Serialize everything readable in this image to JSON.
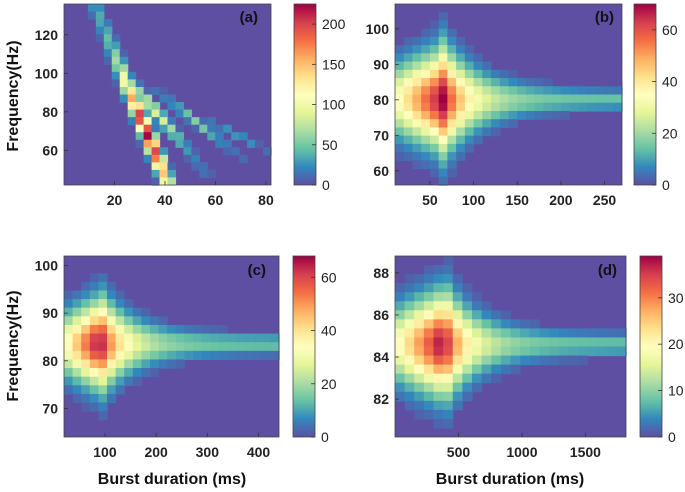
{
  "chart_data": [
    {
      "type": "heatmap",
      "panel_label": "(a)",
      "xlabel": "",
      "ylabel": "Frequency(Hz)",
      "xlim": [
        0,
        82
      ],
      "ylim": [
        42,
        136
      ],
      "xticks": [
        "20",
        "40",
        "60",
        "80"
      ],
      "xtick_values": [
        20,
        40,
        60,
        80
      ],
      "yticks": [
        "60",
        "80",
        "100",
        "120"
      ],
      "ytick_values": [
        60,
        80,
        100,
        120
      ],
      "colorbar": {
        "max": 225,
        "ticks": [
          "0",
          "50",
          "100",
          "150",
          "200"
        ],
        "tick_values": [
          0,
          50,
          100,
          150,
          200
        ]
      },
      "nx": 26,
      "ny": 24,
      "pattern": "diagonal_ridges",
      "ridges": [
        {
          "x_start": 12,
          "x_end": 40,
          "y_start": 136,
          "y_end": 46,
          "peak": 225,
          "peak_x": 29,
          "peak_y": 69
        },
        {
          "x_start": 24,
          "x_end": 55,
          "y_start": 100,
          "y_end": 50,
          "peak": 90,
          "peak_x": 35,
          "peak_y": 80
        },
        {
          "x_start": 38,
          "x_end": 72,
          "y_start": 90,
          "y_end": 54,
          "peak": 55,
          "peak_x": 50,
          "peak_y": 75
        },
        {
          "x_start": 52,
          "x_end": 82,
          "y_start": 80,
          "y_end": 58,
          "peak": 35,
          "peak_x": 65,
          "peak_y": 68
        }
      ]
    },
    {
      "type": "heatmap",
      "panel_label": "(b)",
      "xlabel": "",
      "ylabel": "",
      "xlim": [
        10,
        270
      ],
      "ylim": [
        56,
        107
      ],
      "xticks": [
        "50",
        "100",
        "150",
        "200",
        "250"
      ],
      "xtick_values": [
        50,
        100,
        150,
        200,
        250
      ],
      "yticks": [
        "60",
        "70",
        "80",
        "90",
        "100"
      ],
      "ytick_values": [
        60,
        70,
        80,
        90,
        100
      ],
      "colorbar": {
        "max": 70,
        "ticks": [
          "0",
          "20",
          "40",
          "60"
        ],
        "tick_values": [
          0,
          20,
          40,
          60
        ]
      },
      "nx": 26,
      "ny": 22,
      "pattern": "horizontal_funnel",
      "peak": {
        "x": 65,
        "y": 80,
        "value": 70
      },
      "decay_x": 35,
      "spread_y0": 18,
      "spread_y_tail": 3,
      "tail_level": 0.2
    },
    {
      "type": "heatmap",
      "panel_label": "(c)",
      "xlabel": "Burst duration (ms)",
      "ylabel": "Frequency(Hz)",
      "xlim": [
        20,
        440
      ],
      "ylim": [
        64,
        102
      ],
      "xticks": [
        "100",
        "200",
        "300",
        "400"
      ],
      "xtick_values": [
        100,
        200,
        300,
        400
      ],
      "yticks": [
        "70",
        "80",
        "90",
        "100"
      ],
      "yticks_values": [
        70,
        80,
        90,
        100
      ],
      "ytick_values": [
        70,
        80,
        90,
        100
      ],
      "colorbar": {
        "max": 68,
        "ticks": [
          "0",
          "20",
          "40",
          "60"
        ],
        "tick_values": [
          0,
          20,
          40,
          60
        ]
      },
      "nx": 25,
      "ny": 21,
      "pattern": "horizontal_funnel",
      "peak": {
        "x": 90,
        "y": 83.5,
        "value": 68
      },
      "decay_x": 55,
      "spread_y0": 12,
      "spread_y_tail": 2.5,
      "tail_level": 0.2
    },
    {
      "type": "heatmap",
      "panel_label": "(d)",
      "xlabel": "Burst duration (ms)",
      "ylabel": "",
      "xlim": [
        0,
        1820
      ],
      "ylim": [
        80.2,
        88.8
      ],
      "xticks": [
        "500",
        "1000",
        "1500"
      ],
      "xtick_values": [
        500,
        1000,
        1500
      ],
      "yticks": [
        "82",
        "84",
        "86",
        "88"
      ],
      "ytick_values": [
        82,
        84,
        86,
        88
      ],
      "colorbar": {
        "max": 39,
        "ticks": [
          "0",
          "10",
          "20",
          "30"
        ],
        "tick_values": [
          0,
          10,
          20,
          30
        ]
      },
      "nx": 24,
      "ny": 20,
      "pattern": "horizontal_funnel",
      "peak": {
        "x": 380,
        "y": 84.6,
        "value": 39
      },
      "decay_x": 230,
      "spread_y0": 3.2,
      "spread_y_tail": 0.6,
      "tail_level": 0.2
    }
  ]
}
